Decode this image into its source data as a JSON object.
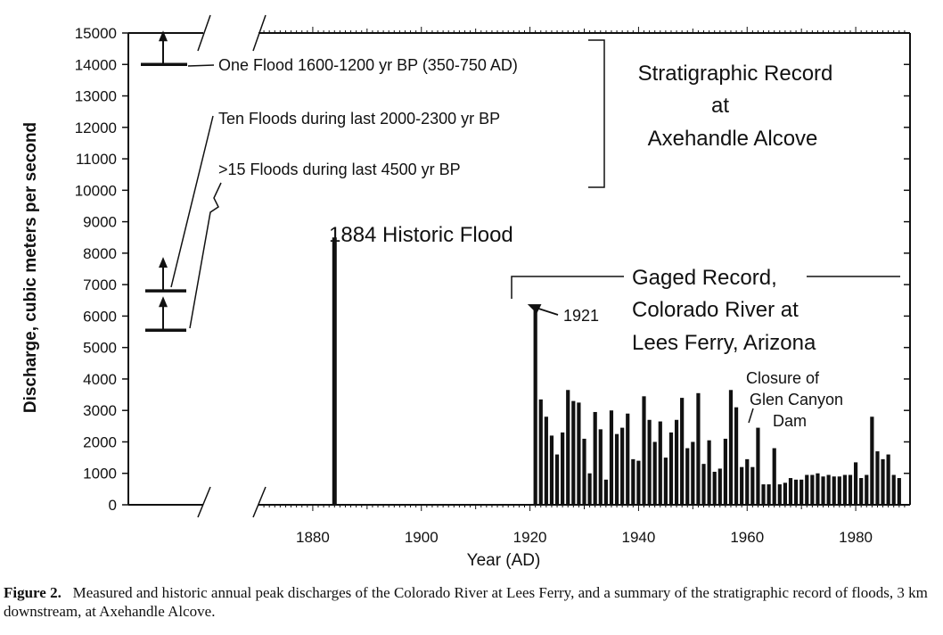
{
  "chart_data": {
    "type": "bar",
    "title": "",
    "xlabel": "Year (AD)",
    "ylabel": "Discharge, cubic meters per second",
    "xlim": [
      1870,
      1990
    ],
    "ylim": [
      0,
      15000
    ],
    "x_ticks": [
      1880,
      1900,
      1920,
      1940,
      1960,
      1980
    ],
    "y_ticks": [
      0,
      1000,
      2000,
      3000,
      4000,
      5000,
      6000,
      7000,
      8000,
      9000,
      10000,
      11000,
      12000,
      13000,
      14000,
      15000
    ],
    "series": [
      {
        "name": "Historic flood",
        "years": [
          1884
        ],
        "values": [
          8500
        ]
      },
      {
        "name": "Gaged Record, Colorado River at Lees Ferry",
        "years": [
          1921,
          1922,
          1923,
          1924,
          1925,
          1926,
          1927,
          1928,
          1929,
          1930,
          1931,
          1932,
          1933,
          1934,
          1935,
          1936,
          1937,
          1938,
          1939,
          1940,
          1941,
          1942,
          1943,
          1944,
          1945,
          1946,
          1947,
          1948,
          1949,
          1950,
          1951,
          1952,
          1953,
          1954,
          1955,
          1956,
          1957,
          1958,
          1959,
          1960,
          1961,
          1962,
          1963,
          1964,
          1965,
          1966,
          1967,
          1968,
          1969,
          1970,
          1971,
          1972,
          1973,
          1974,
          1975,
          1976,
          1977,
          1978,
          1979,
          1980,
          1981,
          1982,
          1983,
          1984,
          1985,
          1986,
          1987,
          1988
        ],
        "values": [
          6250,
          3350,
          2800,
          2200,
          1600,
          2300,
          3650,
          3300,
          3250,
          2100,
          1000,
          2950,
          2400,
          800,
          3000,
          2250,
          2450,
          2900,
          1450,
          1400,
          3450,
          2700,
          2000,
          2650,
          1500,
          2300,
          2700,
          3400,
          1800,
          2000,
          3550,
          1300,
          2050,
          1050,
          1150,
          2100,
          3650,
          3100,
          1200,
          1450,
          1200,
          2450,
          650,
          650,
          1800,
          650,
          700,
          850,
          800,
          800,
          950,
          950,
          1000,
          900,
          950,
          900,
          900,
          950,
          950,
          1350,
          850,
          950,
          2800,
          1700,
          1450,
          1600,
          950,
          850
        ]
      }
    ],
    "paleo_floods": [
      {
        "marker": "One Flood 1600-1200 yr BP (350-750 AD)",
        "value": 14000
      },
      {
        "marker": "Ten Floods during last 2000-2300 yr BP",
        "value": 6800
      },
      {
        "marker": ">15 Floods during last 4500 yr BP",
        "value": 5550
      }
    ],
    "annotations": {
      "strat_title": [
        "Stratigraphic Record",
        "at",
        "Axehandle Alcove"
      ],
      "one_flood": "One Flood 1600-1200 yr BP (350-750 AD)",
      "ten_floods": "Ten Floods during last 2000-2300 yr BP",
      "fifteen_floods": ">15 Floods during last 4500 yr BP",
      "historic": "1884 Historic Flood",
      "gaged": [
        "Gaged Record,",
        "Colorado River at",
        "Lees Ferry, Arizona"
      ],
      "year_1921": "1921",
      "closure": [
        "Closure of",
        "Glen Canyon",
        "Dam"
      ]
    }
  },
  "caption": {
    "label": "Figure 2.",
    "text": "Measured and historic annual peak discharges of the Colorado River at Lees Ferry, and a summary of the stratigraphic record of floods, 3 km downstream, at Axehandle Alcove."
  }
}
